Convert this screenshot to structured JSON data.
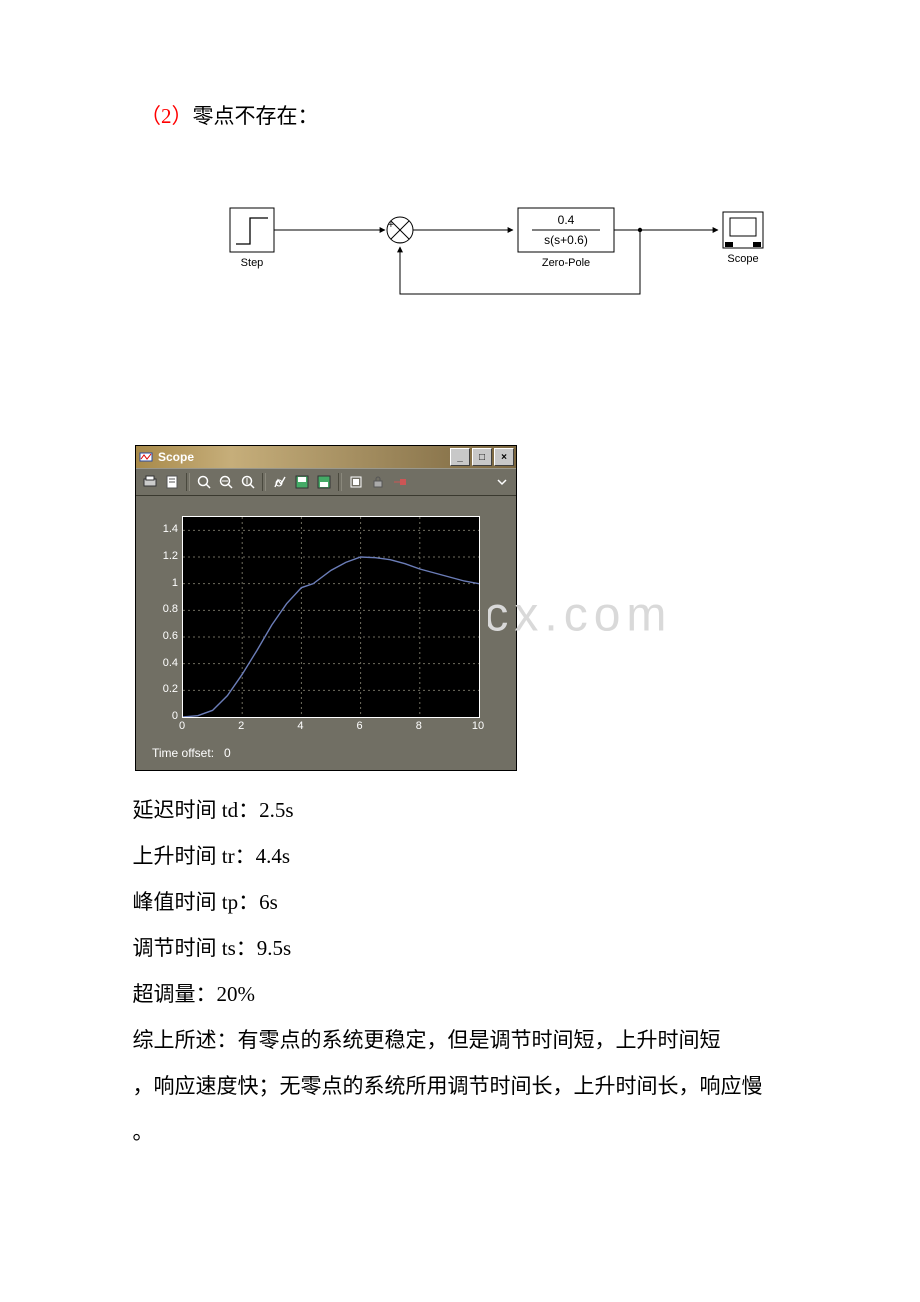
{
  "heading": {
    "prefix": "（2）",
    "text": "零点不存在："
  },
  "diagram": {
    "step_label": "Step",
    "tf_numerator": "0.4",
    "tf_denominator": "s(s+0.6)",
    "tf_label": "Zero-Pole",
    "scope_label": "Scope"
  },
  "scope": {
    "title": "Scope",
    "toolbar_icons": [
      "print-icon",
      "params-icon",
      "zoom-in-icon",
      "zoom-x-icon",
      "zoom-y-icon",
      "autoscale-icon",
      "save-icon",
      "restore-icon",
      "float-icon",
      "lock-icon",
      "signal-icon"
    ],
    "chart": {
      "type": "line",
      "xlim": [
        0,
        10
      ],
      "ylim": [
        0,
        1.5
      ],
      "xtick_step": 2,
      "ytick_step": 0.2,
      "xticks": [
        0,
        2,
        4,
        6,
        8,
        10
      ],
      "yticks": [
        0,
        0.2,
        0.4,
        0.6,
        0.8,
        1.0,
        1.2,
        1.4
      ],
      "background_color": "#000000",
      "frame_color": "#716f64",
      "grid_color": "#706e60",
      "grid_dash": "2,3",
      "axis_color": "#ffffff",
      "line_color": "#6b7db8",
      "line_width": 1.4,
      "tick_label_color": "#ffffff",
      "tick_fontsize": 11,
      "series": {
        "x": [
          0,
          0.5,
          1.0,
          1.5,
          2.0,
          2.5,
          3.0,
          3.5,
          4.0,
          4.4,
          5.0,
          5.5,
          6.0,
          6.5,
          7.0,
          7.5,
          8.0,
          8.5,
          9.0,
          9.5,
          10.0
        ],
        "y": [
          0,
          0.01,
          0.05,
          0.16,
          0.32,
          0.5,
          0.69,
          0.85,
          0.97,
          1.0,
          1.1,
          1.16,
          1.2,
          1.195,
          1.18,
          1.15,
          1.11,
          1.08,
          1.05,
          1.02,
          1.0
        ]
      }
    },
    "time_offset_label": "Time offset:",
    "time_offset_value": "0"
  },
  "metrics": {
    "td_label": "延迟时间",
    "td_sym": "td：",
    "td_val": "2.5s",
    "tr_label": "上升时间",
    "tr_sym": "tr：",
    "tr_val": "4.4s",
    "tp_label": "峰值时间",
    "tp_sym": "tp：",
    "tp_val": "6s",
    "ts_label": "调节时间",
    "ts_sym": "ts：",
    "ts_val": "9.5s",
    "ov_label": "超调量：",
    "ov_val": "20%"
  },
  "summary": {
    "line1": "综上所述：有零点的系统更稳定，但是调节时间短，上升时间短",
    "line2": "，响应速度快；无零点的系统所用调节时间长，上升时间长，响应慢",
    "line3": "。"
  },
  "watermark": "www.bdocx.com",
  "colors": {
    "heading_accent": "#ff0000",
    "page_bg": "#ffffff",
    "text": "#000000"
  }
}
